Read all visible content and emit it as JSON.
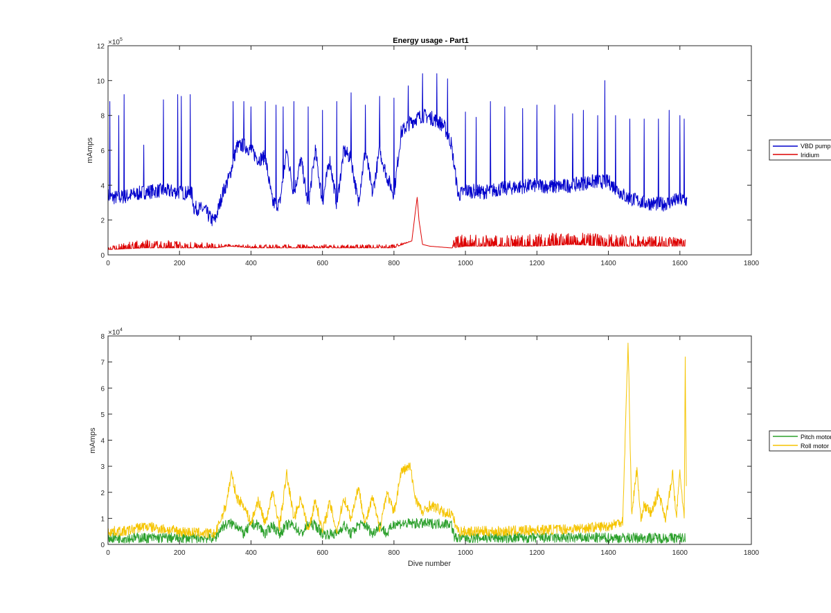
{
  "chart_data": [
    {
      "type": "line",
      "title": "Energy usage - Part1",
      "xlabel": "",
      "ylabel": "mAmps",
      "exponent_label": "×10^5",
      "exponent_base": "×10",
      "exponent_power": "5",
      "xlim": [
        0,
        1800
      ],
      "ylim": [
        0,
        1200000
      ],
      "xticks": [
        0,
        200,
        400,
        600,
        800,
        1000,
        1200,
        1400,
        1600,
        1800
      ],
      "yticks": [
        0,
        200000,
        400000,
        600000,
        800000,
        1000000,
        1200000
      ],
      "ytick_labels": [
        "0",
        "2",
        "4",
        "6",
        "8",
        "10",
        "12"
      ],
      "xtick_labels": [
        "0",
        "200",
        "400",
        "600",
        "800",
        "1000",
        "1200",
        "1400",
        "1600",
        "1800"
      ],
      "grid": false,
      "legend_position": "outside-right",
      "series": [
        {
          "name": "VBD pump",
          "color": "#0000cc",
          "x": [
            0,
            10,
            30,
            60,
            100,
            150,
            200,
            235,
            240,
            270,
            290,
            300,
            320,
            340,
            360,
            380,
            400,
            420,
            440,
            460,
            480,
            500,
            520,
            540,
            560,
            580,
            600,
            620,
            640,
            660,
            680,
            700,
            720,
            740,
            760,
            780,
            800,
            820,
            840,
            860,
            880,
            900,
            920,
            940,
            960,
            980,
            1000,
            1050,
            1100,
            1150,
            1200,
            1250,
            1300,
            1350,
            1400,
            1450,
            1500,
            1550,
            1600,
            1620
          ],
          "y": [
            340000,
            330000,
            330000,
            340000,
            360000,
            370000,
            360000,
            350000,
            270000,
            260000,
            200000,
            200000,
            350000,
            450000,
            620000,
            630000,
            600000,
            550000,
            560000,
            300000,
            290000,
            600000,
            350000,
            550000,
            280000,
            600000,
            300000,
            550000,
            290000,
            600000,
            550000,
            300000,
            600000,
            350000,
            600000,
            450000,
            350000,
            700000,
            750000,
            780000,
            800000,
            790000,
            770000,
            740000,
            640000,
            340000,
            370000,
            360000,
            380000,
            390000,
            400000,
            390000,
            400000,
            420000,
            420000,
            330000,
            300000,
            290000,
            320000,
            310000
          ],
          "spikes": [
            [
              5,
              880000
            ],
            [
              30,
              800000
            ],
            [
              45,
              920000
            ],
            [
              100,
              630000
            ],
            [
              155,
              890000
            ],
            [
              195,
              920000
            ],
            [
              205,
              910000
            ],
            [
              230,
              920000
            ],
            [
              350,
              880000
            ],
            [
              380,
              880000
            ],
            [
              400,
              850000
            ],
            [
              440,
              880000
            ],
            [
              470,
              860000
            ],
            [
              490,
              850000
            ],
            [
              520,
              880000
            ],
            [
              560,
              850000
            ],
            [
              600,
              830000
            ],
            [
              640,
              880000
            ],
            [
              680,
              930000
            ],
            [
              720,
              860000
            ],
            [
              760,
              910000
            ],
            [
              800,
              900000
            ],
            [
              840,
              970000
            ],
            [
              880,
              1040000
            ],
            [
              920,
              1040000
            ],
            [
              950,
              1010000
            ],
            [
              1000,
              820000
            ],
            [
              1030,
              790000
            ],
            [
              1070,
              880000
            ],
            [
              1110,
              850000
            ],
            [
              1160,
              840000
            ],
            [
              1200,
              860000
            ],
            [
              1250,
              860000
            ],
            [
              1300,
              810000
            ],
            [
              1330,
              830000
            ],
            [
              1370,
              800000
            ],
            [
              1390,
              1000000
            ],
            [
              1420,
              800000
            ],
            [
              1460,
              780000
            ],
            [
              1500,
              780000
            ],
            [
              1540,
              780000
            ],
            [
              1570,
              830000
            ],
            [
              1600,
              800000
            ],
            [
              1612,
              780000
            ]
          ]
        },
        {
          "name": "Iridium",
          "color": "#dd0000",
          "x": [
            0,
            100,
            200,
            300,
            340,
            400,
            500,
            600,
            700,
            800,
            850,
            860,
            865,
            870,
            880,
            900,
            960,
            970,
            1000,
            1100,
            1200,
            1300,
            1400,
            1500,
            1600,
            1615
          ],
          "y": [
            30000,
            40000,
            40000,
            40000,
            50000,
            40000,
            40000,
            40000,
            40000,
            40000,
            80000,
            250000,
            330000,
            200000,
            60000,
            50000,
            40000,
            40000,
            50000,
            50000,
            50000,
            60000,
            50000,
            50000,
            50000,
            50000
          ],
          "band_max": [
            50000,
            90000,
            80000,
            70000,
            60000,
            60000,
            60000,
            60000,
            60000,
            60000,
            80000,
            250000,
            330000,
            200000,
            60000,
            50000,
            40000,
            110000,
            120000,
            110000,
            120000,
            130000,
            120000,
            110000,
            100000,
            90000
          ]
        }
      ]
    },
    {
      "type": "line",
      "title": "",
      "xlabel": "Dive number",
      "ylabel": "mAmps",
      "exponent_label": "×10^4",
      "exponent_base": "×10",
      "exponent_power": "4",
      "xlim": [
        0,
        1800
      ],
      "ylim": [
        0,
        80000
      ],
      "xticks": [
        0,
        200,
        400,
        600,
        800,
        1000,
        1200,
        1400,
        1600,
        1800
      ],
      "yticks": [
        0,
        10000,
        20000,
        30000,
        40000,
        50000,
        60000,
        70000,
        80000
      ],
      "ytick_labels": [
        "0",
        "1",
        "2",
        "3",
        "4",
        "5",
        "6",
        "7",
        "8"
      ],
      "xtick_labels": [
        "0",
        "200",
        "400",
        "600",
        "800",
        "1000",
        "1200",
        "1400",
        "1600",
        "1800"
      ],
      "grid": false,
      "legend_position": "outside-right",
      "series": [
        {
          "name": "Pitch motor",
          "color": "#2ca02c",
          "x": [
            0,
            50,
            100,
            200,
            300,
            320,
            340,
            360,
            380,
            400,
            420,
            440,
            460,
            480,
            500,
            520,
            540,
            560,
            580,
            600,
            640,
            660,
            680,
            700,
            720,
            740,
            760,
            780,
            800,
            840,
            900,
            960,
            970,
            1000,
            1200,
            1400,
            1600,
            1615
          ],
          "y": [
            2500,
            2500,
            2500,
            2500,
            2500,
            7000,
            8000,
            7500,
            4000,
            7500,
            7500,
            4000,
            7500,
            4000,
            7500,
            7500,
            4000,
            7500,
            7500,
            4000,
            4000,
            7500,
            4000,
            7500,
            7500,
            4000,
            7500,
            4000,
            8000,
            8000,
            8000,
            8000,
            2500,
            2500,
            2500,
            2500,
            2500,
            2500
          ]
        },
        {
          "name": "Roll motor",
          "color": "#f5c400",
          "x": [
            0,
            50,
            100,
            150,
            200,
            250,
            300,
            330,
            345,
            360,
            380,
            400,
            420,
            440,
            460,
            480,
            500,
            520,
            540,
            560,
            580,
            600,
            620,
            640,
            660,
            680,
            700,
            720,
            740,
            760,
            780,
            800,
            820,
            845,
            860,
            880,
            900,
            920,
            940,
            960,
            980,
            1000,
            1100,
            1200,
            1300,
            1400,
            1440,
            1455,
            1465,
            1480,
            1490,
            1500,
            1520,
            1540,
            1560,
            1580,
            1590,
            1600,
            1612,
            1615,
            1618
          ],
          "y": [
            5000,
            5000,
            7000,
            6000,
            5000,
            4500,
            4000,
            15000,
            27000,
            18000,
            15000,
            8000,
            17000,
            8000,
            20000,
            7000,
            27000,
            10000,
            18000,
            5000,
            17000,
            5000,
            16000,
            5000,
            18000,
            10000,
            22000,
            8000,
            18000,
            6000,
            20000,
            12000,
            28000,
            30000,
            18000,
            12000,
            15000,
            14000,
            12000,
            12000,
            5000,
            5000,
            5000,
            5500,
            6000,
            7000,
            9000,
            78000,
            12000,
            29000,
            10000,
            15000,
            12000,
            20000,
            10000,
            27000,
            10000,
            28000,
            10000,
            70000,
            22000
          ]
        }
      ]
    }
  ],
  "legends": [
    {
      "items": [
        {
          "label": "VBD pump",
          "color": "#0000cc"
        },
        {
          "label": "Iridium",
          "color": "#dd0000"
        }
      ]
    },
    {
      "items": [
        {
          "label": "Pitch motor",
          "color": "#2ca02c"
        },
        {
          "label": "Roll motor",
          "color": "#f5c400"
        }
      ]
    }
  ]
}
